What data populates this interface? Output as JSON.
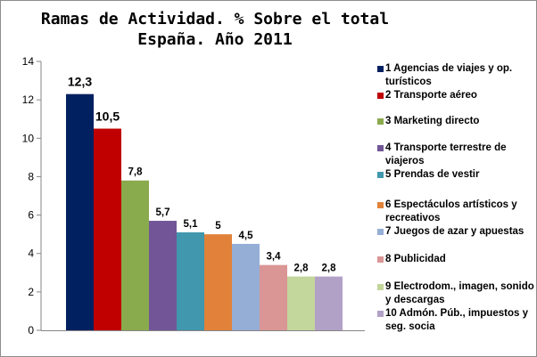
{
  "chart_data": {
    "type": "bar",
    "title": [
      "Ramas de Actividad. % Sobre el total",
      "España. Año 2011"
    ],
    "ylim": [
      0,
      14
    ],
    "yticks": [
      "0",
      "2",
      "4",
      "6",
      "8",
      "10",
      "12",
      "14"
    ],
    "grid": false,
    "legend_position": "right",
    "series": [
      {
        "name": "1 Agencias de viajes y op. turísticos",
        "value": 12.3,
        "label": "12,3",
        "color": "#002060"
      },
      {
        "name": "2 Transporte aéreo",
        "value": 10.5,
        "label": "10,5",
        "color": "#c00000"
      },
      {
        "name": "3 Marketing directo",
        "value": 7.8,
        "label": "7,8",
        "color": "#8aaa4e"
      },
      {
        "name": "4 Transporte terrestre de viajeros",
        "value": 5.7,
        "label": "5,7",
        "color": "#715596"
      },
      {
        "name": "5 Prendas de vestir",
        "value": 5.1,
        "label": "5,1",
        "color": "#4197ad"
      },
      {
        "name": "6 Espectáculos  artísticos y recreativos",
        "value": 5.0,
        "label": "5",
        "color": "#e2823a"
      },
      {
        "name": "7 Juegos de azar y apuestas",
        "value": 4.5,
        "label": "4,5",
        "color": "#95aed6"
      },
      {
        "name": "8 Publicidad",
        "value": 3.4,
        "label": "3,4",
        "color": "#d99694"
      },
      {
        "name": "9 Electrodom., imagen, sonido y descargas",
        "value": 2.8,
        "label": "2,8",
        "color": "#c3d69b"
      },
      {
        "name": "10 Admón. Púb., impuestos y seg. socia",
        "value": 2.8,
        "label": "2,8",
        "color": "#b2a1c7"
      }
    ]
  }
}
